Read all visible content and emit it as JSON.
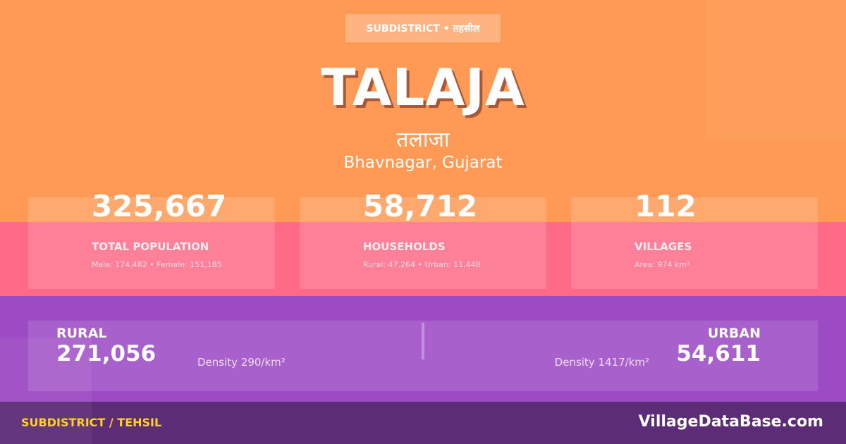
{
  "badge": "SUBDISTRICT • तहसील",
  "title": "TALAJA",
  "local_name": "तलाजा",
  "location": "Bhavnagar, Gujarat",
  "stats": [
    {
      "value": "325,667",
      "label": "TOTAL POPULATION",
      "sub": "Male: 174,482 • Female: 151,185"
    },
    {
      "value": "58,712",
      "label": "HOUSEHOLDS",
      "sub": "Rural: 47,264 • Urban: 11,448"
    },
    {
      "value": "112",
      "label": "VILLAGES",
      "sub": "Area: 974 km²"
    }
  ],
  "rural": {
    "label": "RURAL",
    "value": "271,056",
    "density": "Density 290/km²"
  },
  "urban": {
    "label": "URBAN",
    "value": "54,611",
    "density": "Density 1417/km²"
  },
  "footer": {
    "type": "SUBDISTRICT / TEHSIL",
    "brand": "VillageDataBase.com"
  },
  "colors": {
    "orange": "#FF9A56",
    "pink": "#FF6A87",
    "purple": "#9D4BC5",
    "footer": "#5C2C77",
    "accent": "#FFD21F"
  }
}
